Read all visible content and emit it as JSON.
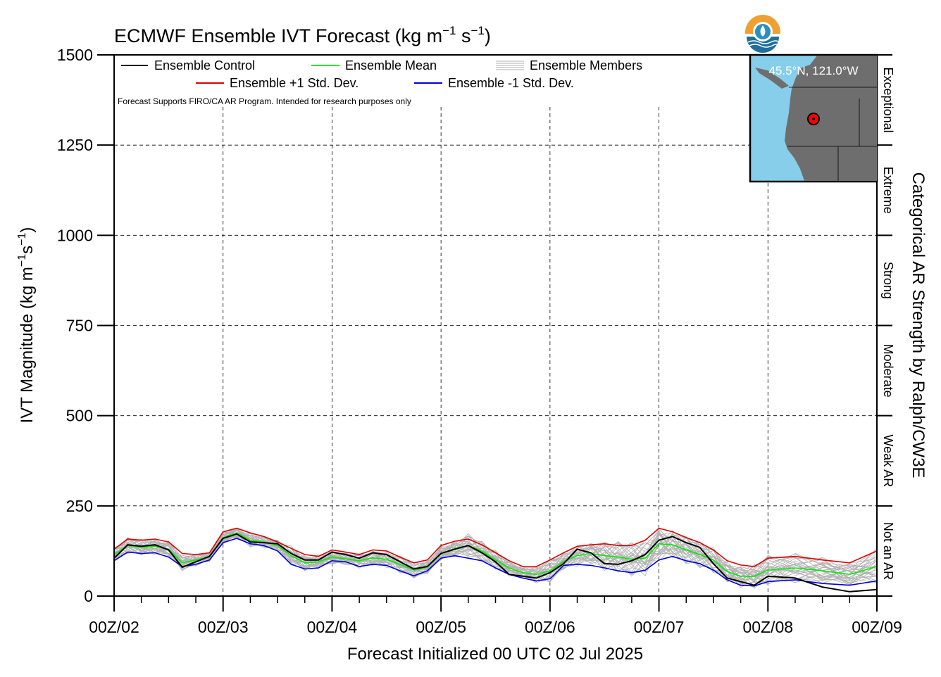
{
  "chart_data": {
    "type": "line",
    "title": "ECMWF Ensemble IVT Forecast (kg m",
    "title_sup1": "−1",
    "title_mid": " s",
    "title_sup2": "−1",
    "title_end": ")",
    "ylabel_main": "IVT Magnitude (kg m",
    "ylabel_sup1": "−1",
    "ylabel_mid": "s",
    "ylabel_sup2": "−1",
    "ylabel_end": ")",
    "xlabel": "Forecast Initialized 00 UTC 02 Jul 2025",
    "right_label": "Categorical AR Strength by Ralph/CW3E",
    "note": "Forecast Supports FIRO/CA AR Program. Intended for research purposes only",
    "ylim": [
      0,
      1500
    ],
    "xlim": [
      0,
      168
    ],
    "y_ticks": [
      0,
      250,
      500,
      750,
      1000,
      1250,
      1500
    ],
    "y_tick_labels": [
      "0",
      "250",
      "500",
      "750",
      "1000",
      "1250",
      "1500"
    ],
    "x_ticks": [
      0,
      24,
      48,
      72,
      96,
      120,
      144,
      168
    ],
    "x_tick_labels": [
      "00Z/02",
      "00Z/03",
      "00Z/04",
      "00Z/05",
      "00Z/06",
      "00Z/07",
      "00Z/08",
      "00Z/09"
    ],
    "grid": true,
    "legend_placement": "top-left",
    "legend": {
      "control": "Ensemble Control",
      "mean": "Ensemble Mean",
      "members": "Ensemble Members",
      "plus": "Ensemble +1 Std. Dev.",
      "minus": "Ensemble -1 Std. Dev."
    },
    "categories": [
      {
        "label": "Not an AR",
        "from": 0,
        "to": 250
      },
      {
        "label": "Weak AR",
        "from": 250,
        "to": 500
      },
      {
        "label": "Moderate",
        "from": 500,
        "to": 750
      },
      {
        "label": "Strong",
        "from": 750,
        "to": 1000
      },
      {
        "label": "Extreme",
        "from": 1000,
        "to": 1250
      },
      {
        "label": "Exceptional",
        "from": 1250,
        "to": 1500
      }
    ],
    "map_inset_label": "45.5°N, 121.0°W",
    "colors": {
      "control": "#000000",
      "mean": "#00ee00",
      "plus": "#e00000",
      "minus": "#0000dd",
      "members": "#b0b0b0",
      "ocean": "#87ceeb",
      "land": "#6e6e6e",
      "marker": "#ff0000"
    },
    "series": [
      {
        "name": "Ensemble Control",
        "key": "control",
        "x": [
          0,
          3,
          6,
          9,
          12,
          15,
          18,
          21,
          24,
          27,
          30,
          33,
          36,
          39,
          42,
          45,
          48,
          51,
          54,
          57,
          60,
          63,
          66,
          69,
          72,
          75,
          78,
          81,
          84,
          87,
          90,
          93,
          96,
          99,
          102,
          105,
          108,
          111,
          114,
          117,
          120,
          123,
          126,
          129,
          132,
          135,
          138,
          141,
          144,
          150,
          156,
          162,
          168
        ],
        "values": [
          105,
          142,
          138,
          142,
          128,
          80,
          95,
          110,
          160,
          172,
          150,
          148,
          145,
          118,
          100,
          100,
          122,
          115,
          105,
          120,
          115,
          95,
          75,
          82,
          118,
          130,
          140,
          120,
          95,
          60,
          55,
          50,
          65,
          90,
          130,
          120,
          90,
          88,
          98,
          115,
          155,
          165,
          148,
          135,
          90,
          50,
          40,
          30,
          55,
          50,
          25,
          12,
          18
        ]
      },
      {
        "name": "Ensemble Mean",
        "key": "mean",
        "x": [
          0,
          3,
          6,
          9,
          12,
          15,
          18,
          21,
          24,
          27,
          30,
          33,
          36,
          39,
          42,
          45,
          48,
          51,
          54,
          57,
          60,
          63,
          66,
          69,
          72,
          75,
          78,
          81,
          84,
          87,
          90,
          93,
          96,
          99,
          102,
          105,
          108,
          111,
          114,
          117,
          120,
          123,
          126,
          129,
          132,
          135,
          138,
          141,
          144,
          150,
          156,
          162,
          168
        ],
        "values": [
          115,
          140,
          135,
          138,
          130,
          92,
          100,
          108,
          162,
          175,
          155,
          150,
          140,
          112,
          92,
          95,
          108,
          103,
          98,
          106,
          102,
          88,
          72,
          80,
          118,
          132,
          140,
          125,
          100,
          78,
          65,
          60,
          70,
          96,
          112,
          118,
          112,
          108,
          102,
          105,
          145,
          142,
          128,
          115,
          100,
          68,
          55,
          55,
          72,
          78,
          70,
          60,
          82
        ]
      },
      {
        "name": "Ensemble +1 Std. Dev.",
        "key": "plus",
        "x": [
          0,
          3,
          6,
          9,
          12,
          15,
          18,
          21,
          24,
          27,
          30,
          33,
          36,
          39,
          42,
          45,
          48,
          51,
          54,
          57,
          60,
          63,
          66,
          69,
          72,
          75,
          78,
          81,
          84,
          87,
          90,
          93,
          96,
          99,
          102,
          105,
          108,
          111,
          114,
          117,
          120,
          123,
          126,
          129,
          132,
          135,
          138,
          141,
          144,
          150,
          156,
          162,
          168
        ],
        "values": [
          130,
          158,
          155,
          158,
          150,
          118,
          115,
          120,
          178,
          188,
          175,
          165,
          150,
          132,
          115,
          110,
          128,
          122,
          115,
          128,
          125,
          108,
          92,
          100,
          140,
          152,
          158,
          142,
          120,
          98,
          82,
          82,
          100,
          120,
          138,
          142,
          145,
          140,
          140,
          155,
          188,
          178,
          162,
          148,
          128,
          98,
          86,
          82,
          105,
          110,
          100,
          92,
          125
        ]
      },
      {
        "name": "Ensemble -1 Std. Dev.",
        "key": "minus",
        "x": [
          0,
          3,
          6,
          9,
          12,
          15,
          18,
          21,
          24,
          27,
          30,
          33,
          36,
          39,
          42,
          45,
          48,
          51,
          54,
          57,
          60,
          63,
          66,
          69,
          72,
          75,
          78,
          81,
          84,
          87,
          90,
          93,
          96,
          99,
          102,
          105,
          108,
          111,
          114,
          117,
          120,
          123,
          126,
          129,
          132,
          135,
          138,
          141,
          144,
          150,
          156,
          162,
          168
        ],
        "values": [
          98,
          122,
          118,
          120,
          108,
          82,
          88,
          100,
          148,
          160,
          145,
          140,
          125,
          88,
          75,
          78,
          98,
          95,
          82,
          88,
          85,
          70,
          56,
          70,
          105,
          112,
          105,
          98,
          78,
          60,
          50,
          42,
          48,
          85,
          88,
          85,
          78,
          70,
          65,
          72,
          100,
          110,
          98,
          90,
          72,
          45,
          30,
          28,
          40,
          45,
          35,
          30,
          42
        ]
      }
    ]
  }
}
